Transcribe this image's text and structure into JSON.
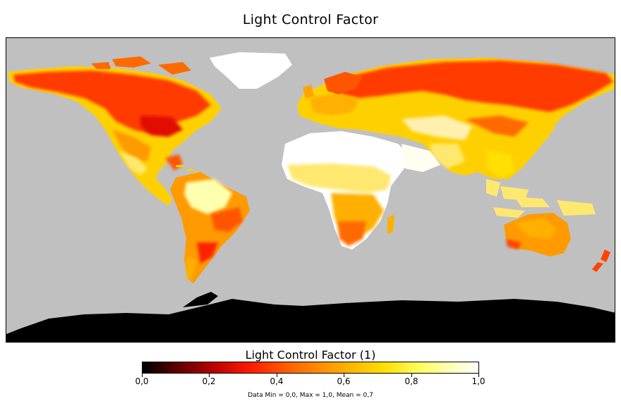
{
  "title": "Light Control Factor",
  "colorbar": {
    "title": "Light Control Factor (1)",
    "ticks": [
      "0,0",
      "0,2",
      "0,4",
      "0,6",
      "0,8",
      "1,0"
    ],
    "tick_values": [
      0.0,
      0.2,
      0.4,
      0.6,
      0.8,
      1.0
    ],
    "colormap": [
      "#000000",
      "#b00000",
      "#ff1a00",
      "#ff6a00",
      "#ffa500",
      "#ffe000",
      "#ffff70",
      "#ffffff"
    ]
  },
  "stats": "Data Min = 0,0, Max = 1,0, Mean = 0,7",
  "map": {
    "ocean_color": "#c0c0c0",
    "antarctica_color": "#000000"
  }
}
